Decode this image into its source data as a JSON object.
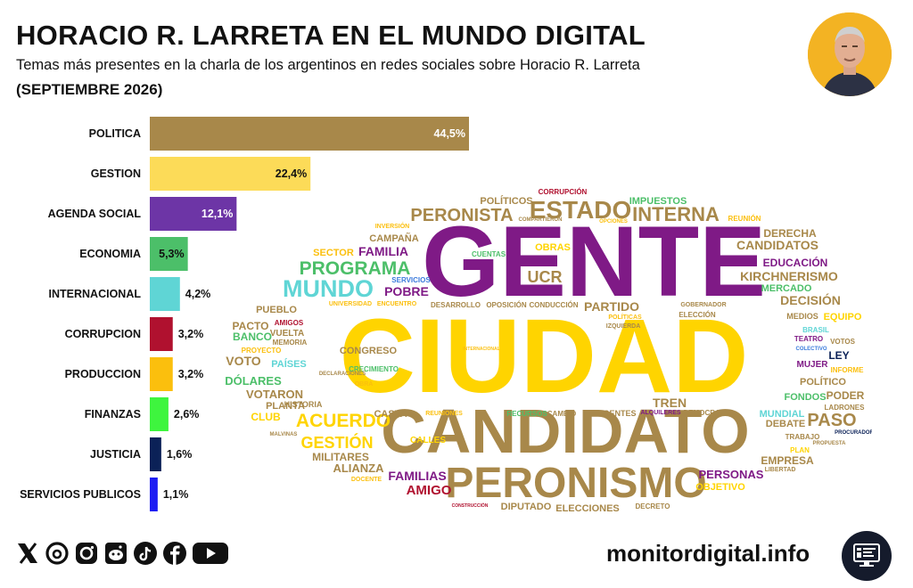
{
  "header": {
    "title": "HORACIO R. LARRETA EN EL MUNDO DIGITAL",
    "subtitle": "Temas más presentes en la charla de los argentinos en redes sociales sobre Horacio R. Larreta",
    "period": "(SEPTIEMBRE 2026)"
  },
  "chart_data": {
    "type": "bar",
    "orientation": "horizontal",
    "categories": [
      "POLITICA",
      "GESTION",
      "AGENDA SOCIAL",
      "ECONOMIA",
      "INTERNACIONAL",
      "CORRUPCION",
      "PRODUCCION",
      "FINANZAS",
      "JUSTICIA",
      "SERVICIOS PUBLICOS"
    ],
    "values": [
      44.5,
      22.4,
      12.1,
      5.3,
      4.2,
      3.2,
      3.2,
      2.6,
      1.6,
      1.1
    ],
    "data_labels": [
      "44,5%",
      "22,4%",
      "12,1%",
      "5,3%",
      "4,2%",
      "3,2%",
      "3,2%",
      "2,6%",
      "1,6%",
      "1,1%"
    ],
    "colors": [
      "#a8884a",
      "#fcdb58",
      "#6d35a6",
      "#4cbf69",
      "#5fd5d5",
      "#b0112f",
      "#fbbf0d",
      "#3ef53e",
      "#0b2157",
      "#1d1df3"
    ],
    "label_colors": [
      "#ffffff",
      "#111111",
      "#ffffff",
      "#111111",
      "#111111",
      "#111111",
      "#111111",
      "#111111",
      "#111111",
      "#111111"
    ],
    "label_inside": [
      true,
      true,
      true,
      true,
      false,
      false,
      false,
      false,
      false,
      false
    ],
    "grid": false
  },
  "word_cloud": [
    {
      "text": "CIUDAD",
      "color": "#ffd400"
    },
    {
      "text": "GENTE",
      "color": "#7f1a86"
    },
    {
      "text": "CANDIDATO",
      "color": "#a8884a"
    },
    {
      "text": "PERONISMO",
      "color": "#a8884a"
    },
    {
      "text": "ESTADO",
      "color": "#a8884a"
    },
    {
      "text": "PERONISTA",
      "color": "#a8884a"
    },
    {
      "text": "INTERNA",
      "color": "#a8884a"
    },
    {
      "text": "PROGRAMA",
      "color": "#4cbf69"
    },
    {
      "text": "MUNDO",
      "color": "#5fd5d5"
    },
    {
      "text": "FAMILIA",
      "color": "#7f1a86"
    },
    {
      "text": "POBRE",
      "color": "#7f1a86"
    },
    {
      "text": "UCR",
      "color": "#a8884a"
    },
    {
      "text": "PARTIDO",
      "color": "#a8884a"
    },
    {
      "text": "KIRCHNERISMO",
      "color": "#a8884a"
    },
    {
      "text": "CANDIDATOS",
      "color": "#a8884a"
    },
    {
      "text": "DERECHA",
      "color": "#a8884a"
    },
    {
      "text": "EDUCACIÓN",
      "color": "#7f1a86"
    },
    {
      "text": "DECISIÓN",
      "color": "#a8884a"
    },
    {
      "text": "MERCADO",
      "color": "#4cbf69"
    },
    {
      "text": "ACUERDO",
      "color": "#ffd400"
    },
    {
      "text": "GESTIÓN",
      "color": "#ffd400"
    },
    {
      "text": "PASO",
      "color": "#a8884a"
    },
    {
      "text": "FAMILIAS",
      "color": "#7f1a86"
    },
    {
      "text": "AMIGO",
      "color": "#b0112f"
    },
    {
      "text": "ALIANZA",
      "color": "#a8884a"
    },
    {
      "text": "MILITARES",
      "color": "#a8884a"
    },
    {
      "text": "PERSONAS",
      "color": "#7f1a86"
    },
    {
      "text": "OBJETIVO",
      "color": "#ffd400"
    },
    {
      "text": "EMPRESA",
      "color": "#a8884a"
    },
    {
      "text": "VOTO",
      "color": "#a8884a"
    },
    {
      "text": "DÓLARES",
      "color": "#4cbf69"
    },
    {
      "text": "VOTARON",
      "color": "#a8884a"
    },
    {
      "text": "PLANTA",
      "color": "#a8884a"
    },
    {
      "text": "CLUB",
      "color": "#ffd400"
    },
    {
      "text": "BANCO",
      "color": "#4cbf69"
    },
    {
      "text": "PACTO",
      "color": "#a8884a"
    },
    {
      "text": "PUEBLO",
      "color": "#a8884a"
    },
    {
      "text": "CAMPAÑA",
      "color": "#a8884a"
    },
    {
      "text": "SECTOR",
      "color": "#fbbf0d"
    },
    {
      "text": "POLÍTICOS",
      "color": "#a8884a"
    },
    {
      "text": "IMPUESTOS",
      "color": "#4cbf69"
    },
    {
      "text": "CORRUPCIÓN",
      "color": "#b0112f"
    },
    {
      "text": "OBRAS",
      "color": "#ffd400"
    },
    {
      "text": "CUENTAS",
      "color": "#4cbf69"
    },
    {
      "text": "SERVICIOS",
      "color": "#3b7bdc"
    },
    {
      "text": "CONGRESO",
      "color": "#a8884a"
    },
    {
      "text": "CRECIMIENTO",
      "color": "#4cbf69"
    },
    {
      "text": "PAÍSES",
      "color": "#5fd5d5"
    },
    {
      "text": "HISTORIA",
      "color": "#a8884a"
    },
    {
      "text": "CASTA",
      "color": "#a8884a"
    },
    {
      "text": "CALLES",
      "color": "#ffd400"
    },
    {
      "text": "TREN",
      "color": "#a8884a"
    },
    {
      "text": "DIRIGENTES",
      "color": "#a8884a"
    },
    {
      "text": "DEMOCRACIA",
      "color": "#a8884a"
    },
    {
      "text": "MUNDIAL",
      "color": "#5fd5d5"
    },
    {
      "text": "DEBATE",
      "color": "#a8884a"
    },
    {
      "text": "DIPUTADO",
      "color": "#a8884a"
    },
    {
      "text": "ELECCIONES",
      "color": "#a8884a"
    },
    {
      "text": "FONDOS",
      "color": "#4cbf69"
    },
    {
      "text": "PODER",
      "color": "#a8884a"
    },
    {
      "text": "POLÍTICO",
      "color": "#a8884a"
    },
    {
      "text": "LEY",
      "color": "#0b2157"
    },
    {
      "text": "MUJER",
      "color": "#7f1a86"
    },
    {
      "text": "EQUIPO",
      "color": "#ffd400"
    },
    {
      "text": "MEDIOS",
      "color": "#a8884a"
    },
    {
      "text": "CALLE",
      "color": "#ffd400"
    },
    {
      "text": "REUNIÓN",
      "color": "#fbbf0d"
    },
    {
      "text": "VUELTA",
      "color": "#a8884a"
    },
    {
      "text": "BRASIL",
      "color": "#5fd5d5"
    },
    {
      "text": "TEATRO",
      "color": "#7f1a86"
    },
    {
      "text": "VOTOS",
      "color": "#a8884a"
    },
    {
      "text": "INFORME",
      "color": "#fbbf0d"
    },
    {
      "text": "TRABAJO",
      "color": "#a8884a"
    },
    {
      "text": "LADRONES",
      "color": "#a8884a"
    },
    {
      "text": "LIBERTAD",
      "color": "#a8884a"
    },
    {
      "text": "PLAN",
      "color": "#ffd400"
    },
    {
      "text": "AMIGOS",
      "color": "#b0112f"
    },
    {
      "text": "MEMORIA",
      "color": "#a8884a"
    },
    {
      "text": "PROYECTO",
      "color": "#fbbf0d"
    },
    {
      "text": "ELECCIÓN",
      "color": "#a8884a"
    },
    {
      "text": "GOBERNADOR",
      "color": "#a8884a"
    },
    {
      "text": "INVERSIÓN",
      "color": "#fbbf0d"
    },
    {
      "text": "UNIVERSIDAD",
      "color": "#fbbf0d"
    },
    {
      "text": "ENCUENTRO",
      "color": "#fbbf0d"
    },
    {
      "text": "DESARROLLO",
      "color": "#a8884a"
    },
    {
      "text": "OPOSICIÓN",
      "color": "#a8884a"
    },
    {
      "text": "CONDUCCIÓN",
      "color": "#a8884a"
    },
    {
      "text": "RECURSOS",
      "color": "#4cbf69"
    },
    {
      "text": "CAMBIO",
      "color": "#a8884a"
    },
    {
      "text": "ALQUILERES",
      "color": "#7f1a86"
    },
    {
      "text": "REUNIONES",
      "color": "#fbbf0d"
    },
    {
      "text": "DOCENTE",
      "color": "#fbbf0d"
    },
    {
      "text": "DECRETO",
      "color": "#a8884a"
    },
    {
      "text": "IZQUIERDA",
      "color": "#a8884a"
    },
    {
      "text": "POLÍTICAS",
      "color": "#fbbf0d"
    },
    {
      "text": "PROCURADOR",
      "color": "#0b2157"
    },
    {
      "text": "PROPUESTA",
      "color": "#a8884a"
    },
    {
      "text": "COLECTIVO",
      "color": "#3b7bdc"
    },
    {
      "text": "OBRA",
      "color": "#fbbf0d"
    },
    {
      "text": "DECLARACIONES",
      "color": "#a8884a"
    },
    {
      "text": "MALVINAS",
      "color": "#a8884a"
    },
    {
      "text": "COMPARTIERON",
      "color": "#a8884a"
    },
    {
      "text": "OPCIONES",
      "color": "#fbbf0d"
    },
    {
      "text": "INTERNACIONAL",
      "color": "#fbbf0d"
    },
    {
      "text": "CONSTRUCCIÓN",
      "color": "#b0112f"
    },
    {
      "text": "DESARROLLO",
      "color": "#a8884a"
    }
  ],
  "footer": {
    "social_icons": [
      "x-icon",
      "threads-icon",
      "instagram-icon",
      "reddit-icon",
      "tiktok-icon",
      "facebook-icon",
      "youtube-icon"
    ],
    "site": "monitordigital.info"
  }
}
